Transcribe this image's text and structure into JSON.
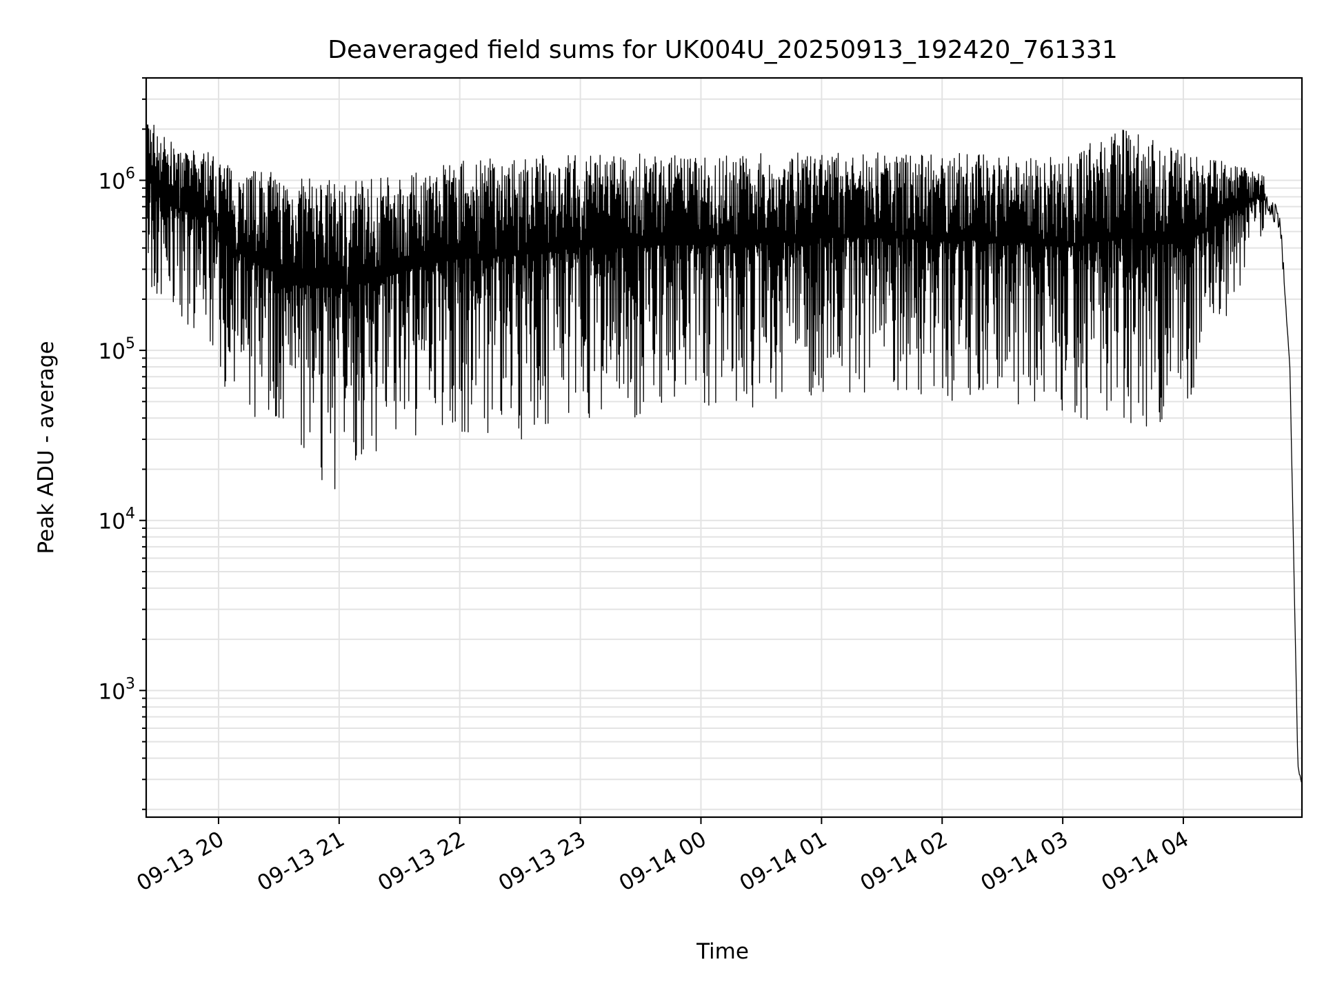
{
  "chart_data": {
    "type": "line",
    "title": "Deaveraged field sums for UK004U_20250913_192420_761331",
    "xlabel": "Time",
    "ylabel": "Peak ADU - average",
    "yscale": "log",
    "grid": true,
    "xlim": [
      "2025-09-13 19:24",
      "2025-09-14 04:59"
    ],
    "ylim": [
      180,
      4000000
    ],
    "x_ticks": [
      "09-13 20",
      "09-13 21",
      "09-13 22",
      "09-13 23",
      "09-14 00",
      "09-14 01",
      "09-14 02",
      "09-14 03",
      "09-14 04"
    ],
    "y_ticks": [
      {
        "base": "10",
        "exp": "3",
        "value": 1000
      },
      {
        "base": "10",
        "exp": "4",
        "value": 10000
      },
      {
        "base": "10",
        "exp": "5",
        "value": 100000
      },
      {
        "base": "10",
        "exp": "6",
        "value": 1000000
      }
    ],
    "line_color": "#000000",
    "series": [
      {
        "values": [
          {
            "x": "2025-09-13 19:24",
            "upper": 2500000,
            "lower": 200000
          },
          {
            "x": "2025-09-13 19:40",
            "upper": 1500000,
            "lower": 150000
          },
          {
            "x": "2025-09-13 19:55",
            "upper": 1500000,
            "lower": 120000
          },
          {
            "x": "2025-09-13 20:05",
            "upper": 1250000,
            "lower": 50000
          },
          {
            "x": "2025-09-13 20:20",
            "upper": 1150000,
            "lower": 30000
          },
          {
            "x": "2025-09-13 20:40",
            "upper": 1050000,
            "lower": 17000
          },
          {
            "x": "2025-09-13 21:00",
            "upper": 1000000,
            "lower": 15000
          },
          {
            "x": "2025-09-13 21:20",
            "upper": 1050000,
            "lower": 20000
          },
          {
            "x": "2025-09-13 21:40",
            "upper": 1150000,
            "lower": 28000
          },
          {
            "x": "2025-09-13 22:00",
            "upper": 1300000,
            "lower": 30000
          },
          {
            "x": "2025-09-13 22:30",
            "upper": 1400000,
            "lower": 30000
          },
          {
            "x": "2025-09-13 23:00",
            "upper": 1450000,
            "lower": 38000
          },
          {
            "x": "2025-09-13 23:30",
            "upper": 1450000,
            "lower": 40000
          },
          {
            "x": "2025-09-14 00:00",
            "upper": 1400000,
            "lower": 45000
          },
          {
            "x": "2025-09-14 00:30",
            "upper": 1450000,
            "lower": 45000
          },
          {
            "x": "2025-09-14 01:00",
            "upper": 1450000,
            "lower": 55000
          },
          {
            "x": "2025-09-14 01:30",
            "upper": 1450000,
            "lower": 55000
          },
          {
            "x": "2025-09-14 02:00",
            "upper": 1450000,
            "lower": 50000
          },
          {
            "x": "2025-09-14 02:30",
            "upper": 1450000,
            "lower": 50000
          },
          {
            "x": "2025-09-14 03:00",
            "upper": 1400000,
            "lower": 40000
          },
          {
            "x": "2025-09-14 03:30",
            "upper": 2000000,
            "lower": 30000
          },
          {
            "x": "2025-09-14 04:00",
            "upper": 1500000,
            "lower": 40000
          },
          {
            "x": "2025-09-14 04:40",
            "upper": 1100000,
            "lower": 500000
          },
          {
            "x": "2025-09-14 04:48",
            "upper": 700000,
            "lower": 500000
          },
          {
            "x": "2025-09-14 04:53",
            "upper": 80000,
            "lower": 80000
          },
          {
            "x": "2025-09-14 04:57",
            "upper": 350,
            "lower": 350
          },
          {
            "x": "2025-09-14 04:59",
            "upper": 280,
            "lower": 280
          }
        ]
      }
    ]
  }
}
